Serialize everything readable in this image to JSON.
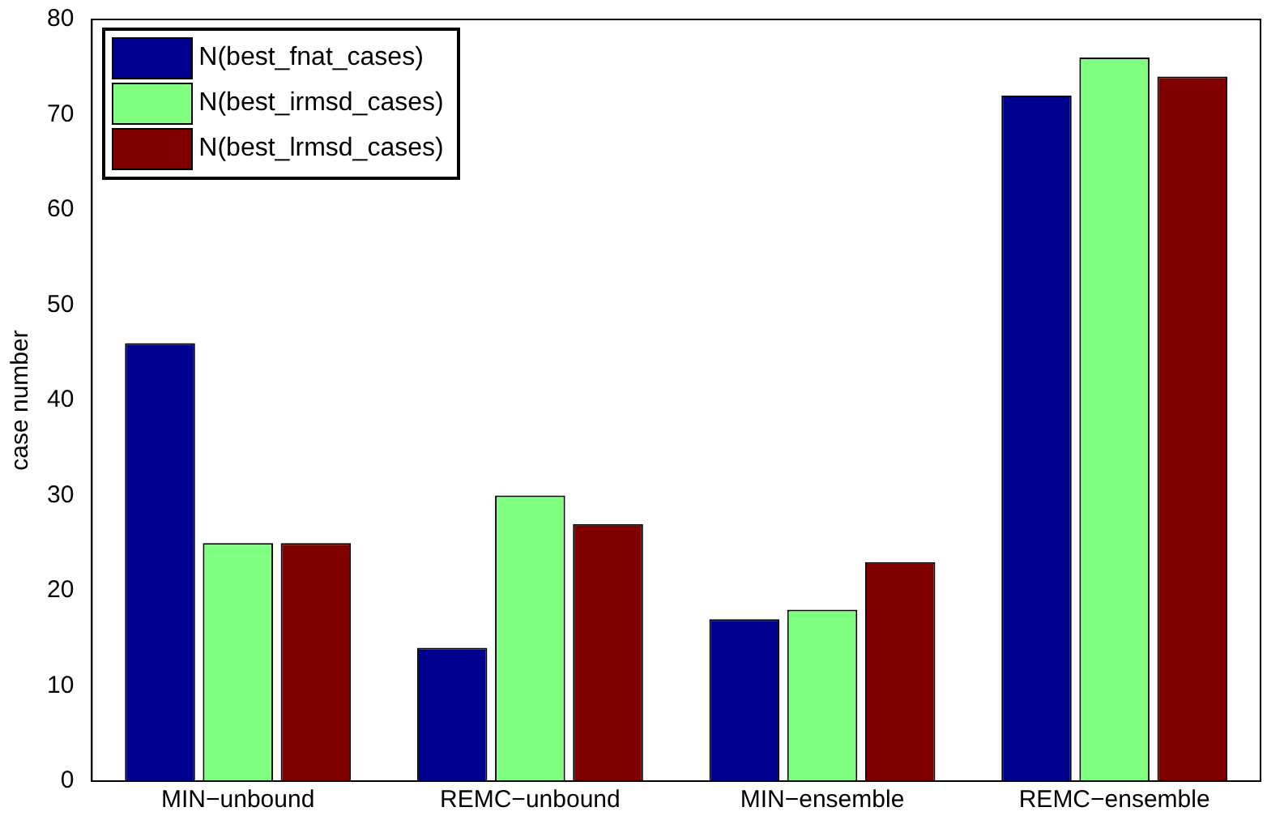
{
  "chart_data": {
    "type": "bar",
    "ylabel": "case number",
    "categories": [
      "MIN−unbound",
      "REMC−unbound",
      "MIN−ensemble",
      "REMC−ensemble"
    ],
    "series": [
      {
        "name": "N(best_fnat_cases)",
        "color": "#00008f",
        "values": [
          46,
          14,
          17,
          72
        ]
      },
      {
        "name": "N(best_irmsd_cases)",
        "color": "#80ff80",
        "values": [
          25,
          30,
          18,
          76
        ]
      },
      {
        "name": "N(best_lrmsd_cases)",
        "color": "#800000",
        "values": [
          25,
          27,
          23,
          74
        ]
      }
    ],
    "ylim": [
      0,
      80
    ],
    "yticks": [
      0,
      10,
      20,
      30,
      40,
      50,
      60,
      70,
      80
    ],
    "grid": false,
    "legend": "top left"
  }
}
